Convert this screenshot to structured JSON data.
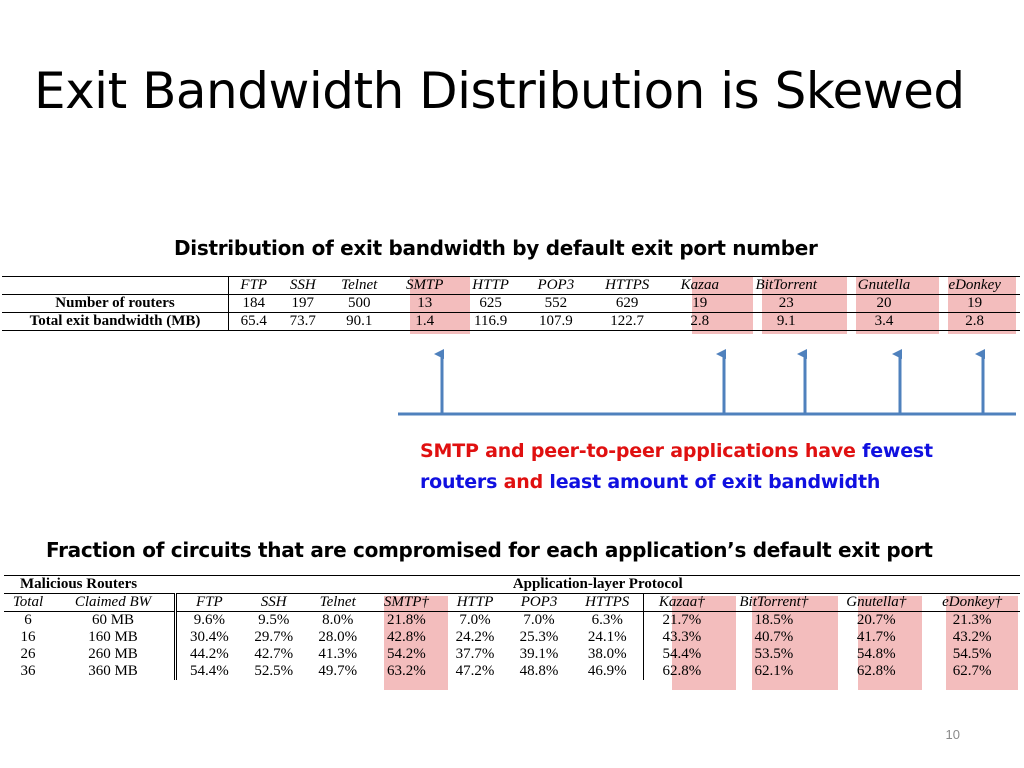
{
  "slide": {
    "title": "Exit Bandwidth Distribution is Skewed",
    "page_number": "10",
    "caption_top": "Distribution of exit bandwidth by default exit port number",
    "caption_bottom": "Fraction of circuits that are compromised for each application’s default exit port",
    "note": {
      "p1": "SMTP and peer-to-peer applications have",
      "p2": "fewest",
      "p3": "routers",
      "p4": "and",
      "p5": "least amount of exit bandwidth"
    }
  },
  "table1": {
    "headers": [
      "FTP",
      "SSH",
      "Telnet",
      "SMTP",
      "HTTP",
      "POP3",
      "HTTPS",
      "Kazaa",
      "BitTorrent",
      "Gnutella",
      "eDonkey"
    ],
    "rows": [
      {
        "label": "Number of routers",
        "values": [
          "184",
          "197",
          "500",
          "13",
          "625",
          "552",
          "629",
          "19",
          "23",
          "20",
          "19"
        ]
      },
      {
        "label": "Total exit bandwidth (MB)",
        "values": [
          "65.4",
          "73.7",
          "90.1",
          "1.4",
          "116.9",
          "107.9",
          "122.7",
          "2.8",
          "9.1",
          "3.4",
          "2.8"
        ]
      }
    ]
  },
  "table2": {
    "group_left": "Malicious Routers",
    "group_right": "Application-layer Protocol",
    "headers": [
      "Total",
      "Claimed BW",
      "FTP",
      "SSH",
      "Telnet",
      "SMTP†",
      "HTTP",
      "POP3",
      "HTTPS",
      "Kazaa†",
      "BitTorrent†",
      "Gnutella†",
      "eDonkey†"
    ],
    "rows": [
      [
        "6",
        "60 MB",
        "9.6%",
        "9.5%",
        "8.0%",
        "21.8%",
        "7.0%",
        "7.0%",
        "6.3%",
        "21.7%",
        "18.5%",
        "20.7%",
        "21.3%"
      ],
      [
        "16",
        "160 MB",
        "30.4%",
        "29.7%",
        "28.0%",
        "42.8%",
        "24.2%",
        "25.3%",
        "24.1%",
        "43.3%",
        "40.7%",
        "41.7%",
        "43.2%"
      ],
      [
        "26",
        "260 MB",
        "44.2%",
        "42.7%",
        "41.3%",
        "54.2%",
        "37.7%",
        "39.1%",
        "38.0%",
        "54.4%",
        "53.5%",
        "54.8%",
        "54.5%"
      ],
      [
        "36",
        "360 MB",
        "54.4%",
        "52.5%",
        "49.7%",
        "63.2%",
        "47.2%",
        "48.8%",
        "46.9%",
        "62.8%",
        "62.1%",
        "62.8%",
        "62.7%"
      ]
    ]
  },
  "colors": {
    "highlight": "#f2b6b6",
    "arrow": "#4f81bd",
    "red": "#e01010",
    "blue": "#1010e0"
  }
}
